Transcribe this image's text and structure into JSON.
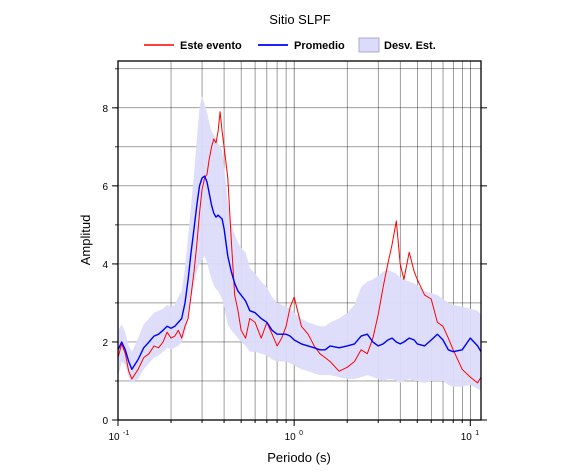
{
  "chart_data": {
    "type": "line",
    "title": "Sitio SLPF",
    "xlabel": "Periodo (s)",
    "ylabel": "Amplitud",
    "x_scale": "log",
    "xlim": [
      0.1,
      11.5
    ],
    "ylim": [
      0,
      9.2
    ],
    "x_ticks": [
      {
        "base": "10",
        "exp": "-1",
        "value": 0.1
      },
      {
        "base": "10",
        "exp": "0",
        "value": 1
      },
      {
        "base": "10",
        "exp": "1",
        "value": 10
      }
    ],
    "y_ticks": [
      0,
      2,
      4,
      6,
      8
    ],
    "grid": true,
    "legend_position": "top",
    "legend": {
      "event": "Este evento",
      "mean": "Promedio",
      "std": "Desv. Est."
    },
    "colors": {
      "event": "#ff0000",
      "mean": "#0000ff",
      "std_fill": "#dcdcfa",
      "std_edge": "#9a9ad0"
    },
    "x": [
      0.1,
      0.105,
      0.11,
      0.115,
      0.12,
      0.13,
      0.14,
      0.15,
      0.16,
      0.17,
      0.18,
      0.19,
      0.2,
      0.21,
      0.22,
      0.23,
      0.24,
      0.25,
      0.26,
      0.27,
      0.28,
      0.29,
      0.3,
      0.31,
      0.32,
      0.33,
      0.34,
      0.35,
      0.36,
      0.37,
      0.38,
      0.39,
      0.4,
      0.42,
      0.44,
      0.46,
      0.48,
      0.5,
      0.53,
      0.56,
      0.6,
      0.65,
      0.7,
      0.75,
      0.8,
      0.85,
      0.9,
      0.95,
      1.0,
      1.1,
      1.2,
      1.3,
      1.4,
      1.5,
      1.6,
      1.8,
      2.0,
      2.2,
      2.4,
      2.6,
      2.8,
      3.0,
      3.2,
      3.4,
      3.6,
      3.8,
      4.0,
      4.2,
      4.5,
      4.8,
      5.0,
      5.5,
      6.0,
      6.5,
      7.0,
      7.5,
      8.0,
      9.0,
      10.0,
      11.0,
      11.5
    ],
    "series": [
      {
        "name": "Este evento",
        "values": [
          1.6,
          1.95,
          1.7,
          1.25,
          1.05,
          1.3,
          1.6,
          1.7,
          1.9,
          1.85,
          2.0,
          2.25,
          2.1,
          2.15,
          2.3,
          2.1,
          2.4,
          2.6,
          3.2,
          3.8,
          4.5,
          5.3,
          5.9,
          6.2,
          6.3,
          6.7,
          7.0,
          7.2,
          7.1,
          7.4,
          7.9,
          7.4,
          7.0,
          6.2,
          4.6,
          3.2,
          2.8,
          2.3,
          2.1,
          2.6,
          2.5,
          2.1,
          2.5,
          2.2,
          1.9,
          2.1,
          2.4,
          2.9,
          3.15,
          2.4,
          2.2,
          1.9,
          1.7,
          1.6,
          1.5,
          1.25,
          1.35,
          1.5,
          1.8,
          1.7,
          2.1,
          2.7,
          3.4,
          4.0,
          4.5,
          5.1,
          4.0,
          3.6,
          4.3,
          3.8,
          3.6,
          3.2,
          3.1,
          2.5,
          2.4,
          2.1,
          1.8,
          1.3,
          1.1,
          0.95,
          1.1
        ]
      },
      {
        "name": "Promedio",
        "values": [
          1.8,
          2.0,
          1.8,
          1.5,
          1.3,
          1.55,
          1.85,
          2.0,
          2.15,
          2.2,
          2.3,
          2.4,
          2.35,
          2.4,
          2.5,
          2.6,
          3.0,
          3.6,
          4.3,
          4.9,
          5.5,
          6.0,
          6.2,
          6.25,
          6.1,
          5.8,
          5.5,
          5.3,
          5.2,
          5.25,
          5.2,
          5.15,
          4.9,
          4.2,
          3.8,
          3.5,
          3.3,
          3.2,
          3.05,
          2.8,
          2.75,
          2.6,
          2.5,
          2.3,
          2.2,
          2.2,
          2.2,
          2.15,
          2.05,
          1.95,
          1.9,
          1.85,
          1.8,
          1.8,
          1.9,
          1.85,
          1.9,
          1.95,
          2.15,
          2.2,
          2.0,
          1.9,
          1.95,
          2.05,
          2.1,
          2.0,
          1.95,
          2.0,
          2.1,
          2.05,
          1.95,
          1.9,
          2.05,
          2.2,
          2.05,
          1.8,
          1.75,
          1.8,
          2.1,
          1.9,
          1.75
        ]
      }
    ],
    "std_band": {
      "name": "Desv. Est.",
      "lower": [
        1.1,
        1.5,
        1.4,
        1.1,
        0.95,
        1.05,
        1.3,
        1.45,
        1.6,
        1.65,
        1.75,
        1.85,
        1.8,
        1.85,
        1.9,
        2.0,
        2.2,
        2.6,
        3.1,
        3.5,
        3.8,
        4.0,
        4.1,
        4.2,
        4.05,
        3.8,
        3.6,
        3.45,
        3.35,
        3.3,
        3.2,
        3.1,
        2.9,
        2.45,
        2.3,
        2.2,
        2.1,
        2.0,
        1.9,
        1.75,
        1.75,
        1.7,
        1.65,
        1.55,
        1.5,
        1.5,
        1.5,
        1.45,
        1.4,
        1.3,
        1.25,
        1.2,
        1.15,
        1.15,
        1.15,
        1.1,
        1.05,
        1.05,
        1.1,
        1.15,
        1.1,
        1.05,
        1.0,
        1.05,
        1.05,
        1.0,
        0.95,
        1.0,
        1.05,
        1.0,
        1.0,
        0.95,
        1.0,
        1.0,
        1.0,
        0.9,
        0.85,
        0.85,
        0.9,
        0.8,
        0.75
      ],
      "upper": [
        2.3,
        2.45,
        2.25,
        1.9,
        1.75,
        2.1,
        2.45,
        2.6,
        2.75,
        2.8,
        2.85,
        2.95,
        2.9,
        2.95,
        3.15,
        3.3,
        3.9,
        4.7,
        5.5,
        6.3,
        7.2,
        8.0,
        8.3,
        8.1,
        7.9,
        7.6,
        7.4,
        7.3,
        7.2,
        7.1,
        7.0,
        6.9,
        6.5,
        5.6,
        5.0,
        4.75,
        4.55,
        4.4,
        4.3,
        3.9,
        3.75,
        3.55,
        3.4,
        3.15,
        3.0,
        2.95,
        2.9,
        2.85,
        2.75,
        2.6,
        2.5,
        2.45,
        2.4,
        2.4,
        2.5,
        2.6,
        2.75,
        2.95,
        3.4,
        3.55,
        3.6,
        3.7,
        3.8,
        3.85,
        3.8,
        3.75,
        3.65,
        3.6,
        3.55,
        3.5,
        3.45,
        3.3,
        3.25,
        3.2,
        3.1,
        3.0,
        2.95,
        2.9,
        2.85,
        2.8,
        2.7
      ]
    }
  }
}
